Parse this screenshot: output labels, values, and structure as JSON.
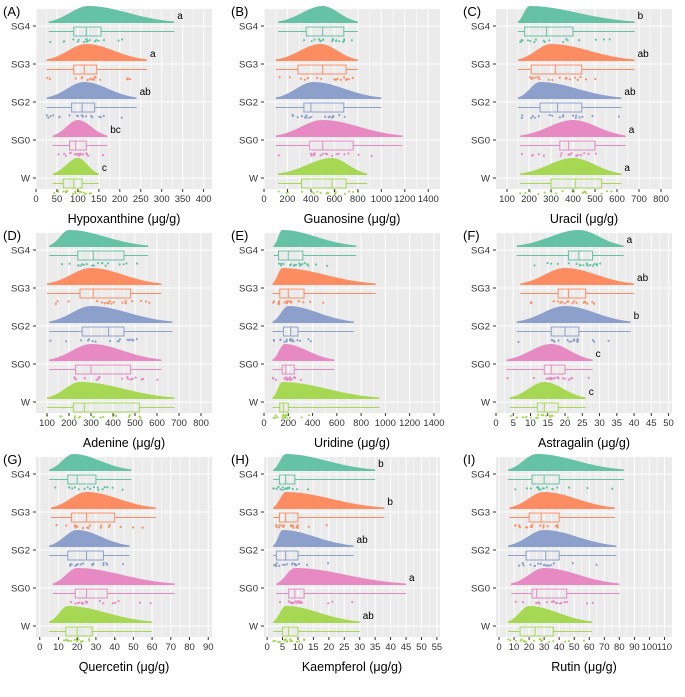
{
  "figure": {
    "groups": [
      "SG4",
      "SG3",
      "SG2",
      "SG0",
      "W"
    ],
    "colors": {
      "SG4": "#66c2a5",
      "SG3": "#fc8d62",
      "SG2": "#8da0cb",
      "SG0": "#e78ac3",
      "W": "#a6d854"
    },
    "panel_bg": "#ebebeb",
    "grid_color": "#ffffff"
  },
  "chart_data": [
    {
      "type": "raincloud",
      "panel_label": "(A)",
      "xlabel": "Hypoxanthine (μg/g)",
      "xlim": [
        0,
        420
      ],
      "xticks": [
        0,
        50,
        100,
        150,
        200,
        250,
        300,
        350,
        400
      ],
      "series": [
        {
          "name": "SG4",
          "min": 30,
          "q1": 90,
          "median": 120,
          "q3": 155,
          "max": 330,
          "peak": 125,
          "letter": "a"
        },
        {
          "name": "SG3",
          "min": 25,
          "q1": 90,
          "median": 115,
          "q3": 145,
          "max": 265,
          "peak": 120,
          "letter": "a"
        },
        {
          "name": "SG2",
          "min": 25,
          "q1": 85,
          "median": 110,
          "q3": 140,
          "max": 240,
          "peak": 115,
          "letter": "ab"
        },
        {
          "name": "SG0",
          "min": 40,
          "q1": 80,
          "median": 95,
          "q3": 120,
          "max": 170,
          "peak": 100,
          "letter": "bc"
        },
        {
          "name": "W",
          "min": 40,
          "q1": 65,
          "median": 90,
          "q3": 110,
          "max": 150,
          "peak": 100,
          "letter": "c"
        }
      ]
    },
    {
      "type": "raincloud",
      "panel_label": "(B)",
      "xlabel": "Guanosine (μg/g)",
      "xlim": [
        0,
        1500
      ],
      "xticks": [
        0,
        200,
        400,
        600,
        800,
        1000,
        1200,
        1400
      ],
      "series": [
        {
          "name": "SG4",
          "min": 120,
          "q1": 360,
          "median": 500,
          "q3": 680,
          "max": 800,
          "peak": 500,
          "letter": ""
        },
        {
          "name": "SG3",
          "min": 100,
          "q1": 290,
          "median": 500,
          "q3": 700,
          "max": 800,
          "peak": 480,
          "letter": ""
        },
        {
          "name": "SG2",
          "min": 100,
          "q1": 340,
          "median": 400,
          "q3": 680,
          "max": 1000,
          "peak": 420,
          "letter": ""
        },
        {
          "name": "SG0",
          "min": 100,
          "q1": 390,
          "median": 500,
          "q3": 760,
          "max": 1180,
          "peak": 500,
          "letter": ""
        },
        {
          "name": "W",
          "min": 120,
          "q1": 320,
          "median": 580,
          "q3": 700,
          "max": 880,
          "peak": 580,
          "letter": ""
        }
      ]
    },
    {
      "type": "raincloud",
      "panel_label": "(C)",
      "xlabel": "Uracil (μg/g)",
      "xlim": [
        50,
        850
      ],
      "xticks": [
        100,
        200,
        300,
        400,
        500,
        600,
        700,
        800
      ],
      "series": [
        {
          "name": "SG4",
          "min": 150,
          "q1": 180,
          "median": 280,
          "q3": 400,
          "max": 680,
          "peak": 200,
          "letter": "b"
        },
        {
          "name": "SG3",
          "min": 150,
          "q1": 210,
          "median": 320,
          "q3": 440,
          "max": 680,
          "peak": 300,
          "letter": "ab"
        },
        {
          "name": "SG2",
          "min": 150,
          "q1": 250,
          "median": 330,
          "q3": 440,
          "max": 620,
          "peak": 250,
          "letter": "ab"
        },
        {
          "name": "SG0",
          "min": 160,
          "q1": 340,
          "median": 380,
          "q3": 500,
          "max": 640,
          "peak": 400,
          "letter": "a"
        },
        {
          "name": "W",
          "min": 160,
          "q1": 300,
          "median": 410,
          "q3": 530,
          "max": 620,
          "peak": 400,
          "letter": "a"
        }
      ]
    },
    {
      "type": "raincloud",
      "panel_label": "(D)",
      "xlabel": "Adenine (μg/g)",
      "xlim": [
        50,
        850
      ],
      "xticks": [
        100,
        200,
        300,
        400,
        500,
        600,
        700,
        800
      ],
      "series": [
        {
          "name": "SG4",
          "min": 110,
          "q1": 240,
          "median": 310,
          "q3": 450,
          "max": 560,
          "peak": 200,
          "letter": ""
        },
        {
          "name": "SG3",
          "min": 100,
          "q1": 250,
          "median": 310,
          "q3": 480,
          "max": 620,
          "peak": 300,
          "letter": ""
        },
        {
          "name": "SG2",
          "min": 110,
          "q1": 260,
          "median": 380,
          "q3": 450,
          "max": 670,
          "peak": 300,
          "letter": ""
        },
        {
          "name": "SG0",
          "min": 110,
          "q1": 230,
          "median": 300,
          "q3": 480,
          "max": 620,
          "peak": 300,
          "letter": ""
        },
        {
          "name": "W",
          "min": 100,
          "q1": 220,
          "median": 270,
          "q3": 520,
          "max": 680,
          "peak": 250,
          "letter": ""
        }
      ]
    },
    {
      "type": "raincloud",
      "panel_label": "(E)",
      "xlabel": "Uridine (μg/g)",
      "xlim": [
        0,
        1450
      ],
      "xticks": [
        0,
        200,
        400,
        600,
        800,
        1000,
        1200,
        1400
      ],
      "series": [
        {
          "name": "SG4",
          "min": 80,
          "q1": 120,
          "median": 200,
          "q3": 320,
          "max": 760,
          "peak": 150,
          "letter": ""
        },
        {
          "name": "SG3",
          "min": 70,
          "q1": 130,
          "median": 200,
          "q3": 330,
          "max": 920,
          "peak": 150,
          "letter": ""
        },
        {
          "name": "SG2",
          "min": 70,
          "q1": 160,
          "median": 220,
          "q3": 280,
          "max": 740,
          "peak": 200,
          "letter": ""
        },
        {
          "name": "SG0",
          "min": 70,
          "q1": 150,
          "median": 180,
          "q3": 250,
          "max": 580,
          "peak": 170,
          "letter": ""
        },
        {
          "name": "W",
          "min": 70,
          "q1": 130,
          "median": 160,
          "q3": 200,
          "max": 950,
          "peak": 150,
          "letter": ""
        }
      ]
    },
    {
      "type": "raincloud",
      "panel_label": "(F)",
      "xlabel": "Astragalin (μg/g)",
      "xlim": [
        0,
        51
      ],
      "xticks": [
        0,
        5,
        10,
        15,
        20,
        25,
        30,
        35,
        40,
        45,
        50
      ],
      "series": [
        {
          "name": "SG4",
          "min": 6,
          "q1": 21,
          "median": 24,
          "q3": 28,
          "max": 37,
          "peak": 24,
          "letter": "a"
        },
        {
          "name": "SG3",
          "min": 7,
          "q1": 18,
          "median": 21,
          "q3": 26,
          "max": 40,
          "peak": 20,
          "letter": "ab"
        },
        {
          "name": "SG2",
          "min": 6,
          "q1": 16,
          "median": 20,
          "q3": 24,
          "max": 39,
          "peak": 20,
          "letter": "b"
        },
        {
          "name": "SG0",
          "min": 3,
          "q1": 14,
          "median": 16,
          "q3": 20,
          "max": 28,
          "peak": 16,
          "letter": "c"
        },
        {
          "name": "W",
          "min": 4,
          "q1": 12,
          "median": 14,
          "q3": 18,
          "max": 26,
          "peak": 14,
          "letter": "c"
        }
      ]
    },
    {
      "type": "raincloud",
      "panel_label": "(G)",
      "xlabel": "Quercetin (μg/g)",
      "xlim": [
        -2,
        92
      ],
      "xticks": [
        0,
        10,
        20,
        30,
        40,
        50,
        60,
        70,
        80,
        90
      ],
      "series": [
        {
          "name": "SG4",
          "min": 5,
          "q1": 15,
          "median": 20,
          "q3": 30,
          "max": 49,
          "peak": 18,
          "letter": ""
        },
        {
          "name": "SG3",
          "min": 6,
          "q1": 17,
          "median": 25,
          "q3": 40,
          "max": 62,
          "peak": 25,
          "letter": ""
        },
        {
          "name": "SG2",
          "min": 5,
          "q1": 15,
          "median": 25,
          "q3": 34,
          "max": 48,
          "peak": 20,
          "letter": ""
        },
        {
          "name": "SG0",
          "min": 7,
          "q1": 19,
          "median": 25,
          "q3": 36,
          "max": 72,
          "peak": 20,
          "letter": ""
        },
        {
          "name": "W",
          "min": 5,
          "q1": 14,
          "median": 20,
          "q3": 28,
          "max": 60,
          "peak": 15,
          "letter": ""
        }
      ]
    },
    {
      "type": "raincloud",
      "panel_label": "(H)",
      "xlabel": "Kaempferol (μg/g)",
      "xlim": [
        -1,
        56
      ],
      "xticks": [
        0,
        5,
        10,
        15,
        20,
        25,
        30,
        35,
        40,
        45,
        50,
        55
      ],
      "series": [
        {
          "name": "SG4",
          "min": 2,
          "q1": 4,
          "median": 6,
          "q3": 9,
          "max": 35,
          "peak": 6,
          "letter": "b"
        },
        {
          "name": "SG3",
          "min": 2,
          "q1": 4,
          "median": 6,
          "q3": 10,
          "max": 38,
          "peak": 6,
          "letter": "b"
        },
        {
          "name": "SG2",
          "min": 2,
          "q1": 3,
          "median": 6,
          "q3": 10,
          "max": 28,
          "peak": 5,
          "letter": "ab"
        },
        {
          "name": "SG0",
          "min": 3,
          "q1": 7,
          "median": 9,
          "q3": 12,
          "max": 45,
          "peak": 9,
          "letter": "a"
        },
        {
          "name": "W",
          "min": 2,
          "q1": 5,
          "median": 7,
          "q3": 10,
          "max": 30,
          "peak": 6,
          "letter": "ab"
        }
      ]
    },
    {
      "type": "raincloud",
      "panel_label": "(I)",
      "xlabel": "Rutin (μg/g)",
      "xlim": [
        -2,
        115
      ],
      "xticks": [
        0,
        10,
        20,
        30,
        40,
        50,
        60,
        70,
        80,
        90,
        100,
        110
      ],
      "xtick_labels": [
        "0",
        "10",
        "20",
        "30",
        "40",
        "50",
        "60",
        "70",
        "80",
        "90",
        "100",
        "110"
      ],
      "series": [
        {
          "name": "SG4",
          "min": 6,
          "q1": 22,
          "median": 30,
          "q3": 40,
          "max": 83,
          "peak": 25,
          "letter": ""
        },
        {
          "name": "SG3",
          "min": 7,
          "q1": 20,
          "median": 28,
          "q3": 40,
          "max": 77,
          "peak": 30,
          "letter": ""
        },
        {
          "name": "SG2",
          "min": 6,
          "q1": 18,
          "median": 31,
          "q3": 40,
          "max": 78,
          "peak": 30,
          "letter": ""
        },
        {
          "name": "SG0",
          "min": 8,
          "q1": 22,
          "median": 25,
          "q3": 45,
          "max": 80,
          "peak": 30,
          "letter": ""
        },
        {
          "name": "W",
          "min": 6,
          "q1": 14,
          "median": 24,
          "q3": 36,
          "max": 62,
          "peak": 20,
          "letter": ""
        }
      ]
    }
  ]
}
